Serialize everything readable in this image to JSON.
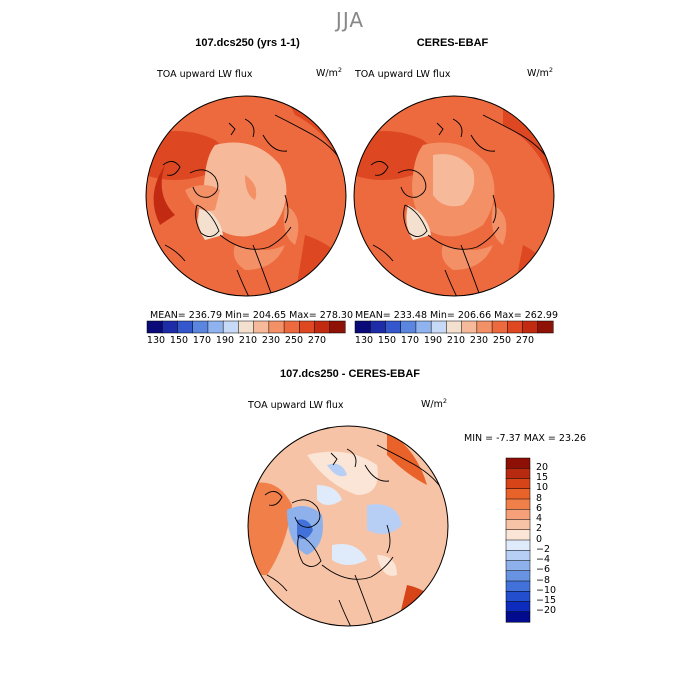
{
  "figure": {
    "season": "JJA",
    "model_panel": {
      "title": "107.dcs250 (yrs 1-1)",
      "variable": "TOA upward LW flux",
      "units": "W/m",
      "units_exp": "2",
      "stats": "MEAN= 236.79   Min= 204.65   Max= 278.30"
    },
    "obs_panel": {
      "title": "CERES-EBAF",
      "variable": "TOA upward LW flux",
      "units": "W/m",
      "units_exp": "2",
      "stats": "MEAN= 233.48   Min= 206.66   Max= 262.99"
    },
    "diff_panel": {
      "title": "107.dcs250 - CERES-EBAF",
      "variable": "TOA upward LW flux",
      "units": "W/m",
      "units_exp": "2",
      "stats": "MIN =   -7.37  MAX =   23.26"
    },
    "colorbar_top": {
      "ticks": [
        "130",
        "150",
        "170",
        "190",
        "210",
        "230",
        "250",
        "270"
      ],
      "colors": [
        "#0a0a78",
        "#1e2ca8",
        "#3457cc",
        "#5b86e0",
        "#8fb3ee",
        "#c6d9f6",
        "#f4e0cf",
        "#f6b999",
        "#f39066",
        "#ec6a3e",
        "#dd4822",
        "#c22b12",
        "#8e1306"
      ]
    },
    "colorbar_diff": {
      "ticks": [
        "20",
        "15",
        "10",
        "8",
        "6",
        "4",
        "2",
        "0",
        "−2",
        "−4",
        "−6",
        "−8",
        "−10",
        "−15",
        "−20"
      ],
      "colors": [
        "#8e0f05",
        "#b82a10",
        "#d64418",
        "#e9622a",
        "#f17f49",
        "#f5a079",
        "#f7c3a6",
        "#fbe5d6",
        "#dfeafa",
        "#b7cff5",
        "#8eb1ec",
        "#6893e3",
        "#4272d9",
        "#234fcf",
        "#0d2bbd",
        "#020a8e"
      ]
    }
  }
}
